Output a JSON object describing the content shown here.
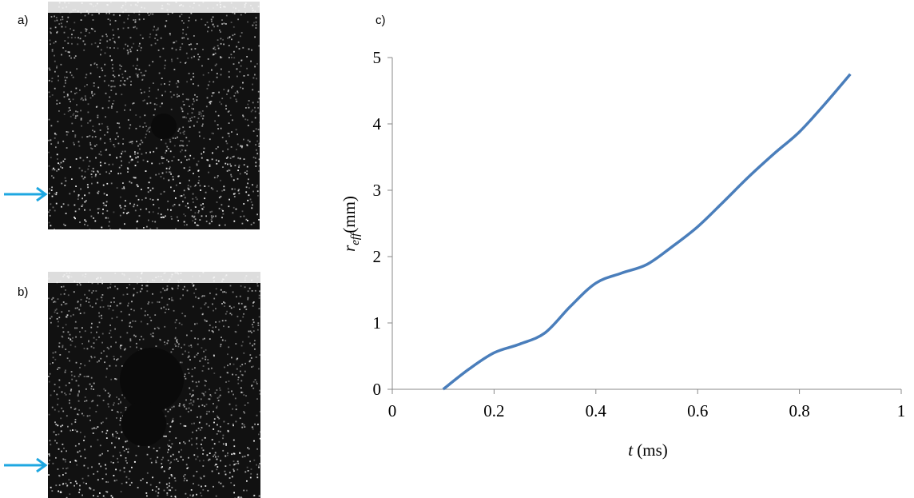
{
  "panels": [
    {
      "label": "a)"
    },
    {
      "label": "b)"
    }
  ],
  "chart_data": {
    "type": "line",
    "panel_label": "c)",
    "x_label": {
      "symbol": "t",
      "unit": "(ms)"
    },
    "y_label": {
      "symbol": "r",
      "subscript": "eff",
      "unit": "(mm)"
    },
    "x": [
      0.1,
      0.15,
      0.2,
      0.25,
      0.3,
      0.35,
      0.4,
      0.45,
      0.5,
      0.55,
      0.6,
      0.65,
      0.7,
      0.75,
      0.8,
      0.85,
      0.9
    ],
    "series": [
      {
        "color": "#4a7ebb",
        "values": [
          0,
          0.3,
          0.55,
          0.68,
          0.85,
          1.25,
          1.6,
          1.75,
          1.88,
          2.15,
          2.45,
          2.82,
          3.2,
          3.55,
          3.88,
          4.3,
          4.75
        ]
      }
    ],
    "xlim": [
      0,
      1
    ],
    "xticks": [
      0,
      0.2,
      0.4,
      0.6,
      0.8,
      1
    ],
    "ylim": [
      0,
      5
    ],
    "yticks": [
      0,
      1,
      2,
      3,
      4,
      5
    ]
  }
}
